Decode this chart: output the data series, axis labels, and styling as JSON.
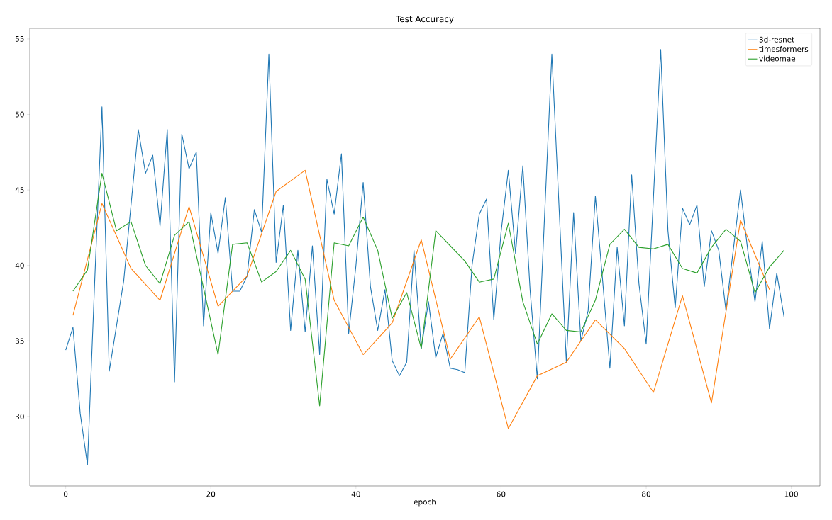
{
  "chart_data": {
    "type": "line",
    "title": "Test Accuracy",
    "xlabel": "epoch",
    "xlim": [
      -4.95,
      103.95
    ],
    "ylim": [
      25.4,
      55.7
    ],
    "xticks": [
      0,
      20,
      40,
      60,
      80,
      100
    ],
    "yticks": [
      30,
      35,
      40,
      45,
      50,
      55
    ],
    "grid": false,
    "legend": "top right",
    "marker": "none",
    "line_style": "solid",
    "series": [
      {
        "name": "3d-resnet",
        "color": "#1f77b4",
        "x": [
          0,
          1,
          2,
          3,
          4,
          5,
          6,
          7,
          8,
          9,
          10,
          11,
          12,
          13,
          14,
          15,
          16,
          17,
          18,
          19,
          20,
          21,
          22,
          23,
          24,
          25,
          26,
          27,
          28,
          29,
          30,
          31,
          32,
          33,
          34,
          35,
          36,
          37,
          38,
          39,
          40,
          41,
          42,
          43,
          44,
          45,
          46,
          47,
          48,
          49,
          50,
          51,
          52,
          53,
          54,
          55,
          56,
          57,
          58,
          59,
          60,
          61,
          62,
          63,
          64,
          65,
          66,
          67,
          68,
          69,
          70,
          71,
          72,
          73,
          74,
          75,
          76,
          77,
          78,
          79,
          80,
          81,
          82,
          83,
          84,
          85,
          86,
          87,
          88,
          89,
          90,
          91,
          92,
          93,
          94,
          95,
          96,
          97,
          98,
          99
        ],
        "values": [
          34.4,
          35.9,
          30.2,
          26.8,
          39.0,
          50.5,
          33.0,
          36.0,
          39.0,
          44.0,
          49.0,
          46.1,
          47.3,
          42.6,
          49.0,
          32.3,
          48.7,
          46.4,
          47.5,
          36.0,
          43.5,
          40.8,
          44.5,
          38.3,
          38.3,
          39.3,
          43.7,
          42.2,
          54.0,
          40.2,
          44.0,
          35.7,
          41.0,
          35.6,
          41.3,
          34.1,
          45.7,
          43.4,
          47.4,
          35.5,
          40.0,
          45.5,
          38.6,
          35.7,
          38.4,
          33.7,
          32.7,
          33.6,
          41.0,
          34.5,
          37.6,
          33.9,
          35.5,
          33.2,
          33.1,
          32.9,
          40.0,
          43.4,
          44.4,
          36.4,
          42.2,
          46.3,
          40.8,
          46.6,
          38.4,
          32.5,
          43.3,
          54.0,
          43.8,
          33.6,
          43.5,
          35.0,
          37.0,
          44.6,
          39.0,
          33.2,
          41.2,
          36.0,
          46.0,
          38.8,
          34.8,
          44.5,
          54.3,
          42.3,
          37.2,
          43.8,
          42.7,
          44.0,
          38.6,
          42.3,
          41.0,
          37.0,
          41.0,
          45.0,
          41.0,
          37.6,
          41.6,
          35.8,
          39.5,
          36.6
        ]
      },
      {
        "name": "timesformers",
        "color": "#ff7f0e",
        "x": [
          1,
          5,
          9,
          13,
          17,
          21,
          25,
          29,
          33,
          37,
          41,
          45,
          49,
          53,
          57,
          61,
          65,
          69,
          73,
          77,
          81,
          85,
          89,
          93,
          97
        ],
        "values": [
          36.7,
          44.1,
          39.8,
          37.7,
          43.9,
          37.3,
          39.3,
          44.9,
          46.3,
          37.7,
          34.1,
          36.2,
          41.7,
          33.8,
          36.6,
          29.2,
          32.7,
          33.6,
          36.4,
          34.5,
          31.6,
          38.0,
          30.9,
          43.0,
          38.4
        ]
      },
      {
        "name": "videomae",
        "color": "#2ca02c",
        "x": [
          1,
          3,
          5,
          7,
          9,
          11,
          13,
          15,
          17,
          19,
          21,
          23,
          25,
          27,
          29,
          31,
          33,
          35,
          37,
          39,
          41,
          43,
          45,
          47,
          49,
          51,
          53,
          55,
          57,
          59,
          61,
          63,
          65,
          67,
          69,
          71,
          73,
          75,
          77,
          79,
          81,
          83,
          85,
          87,
          89,
          91,
          93,
          95,
          97,
          99
        ],
        "values": [
          38.3,
          39.7,
          46.1,
          42.3,
          42.9,
          40.0,
          38.8,
          42.0,
          42.9,
          38.5,
          34.1,
          41.4,
          41.5,
          38.9,
          39.6,
          41.0,
          39.1,
          30.7,
          41.5,
          41.3,
          43.2,
          41.0,
          36.5,
          38.2,
          34.5,
          42.3,
          41.3,
          40.3,
          38.9,
          39.1,
          42.8,
          37.6,
          34.8,
          36.8,
          35.7,
          35.6,
          37.7,
          41.4,
          42.4,
          41.2,
          41.1,
          41.4,
          39.8,
          39.5,
          41.2,
          42.4,
          41.6,
          38.2,
          39.9,
          41.0
        ]
      }
    ]
  }
}
